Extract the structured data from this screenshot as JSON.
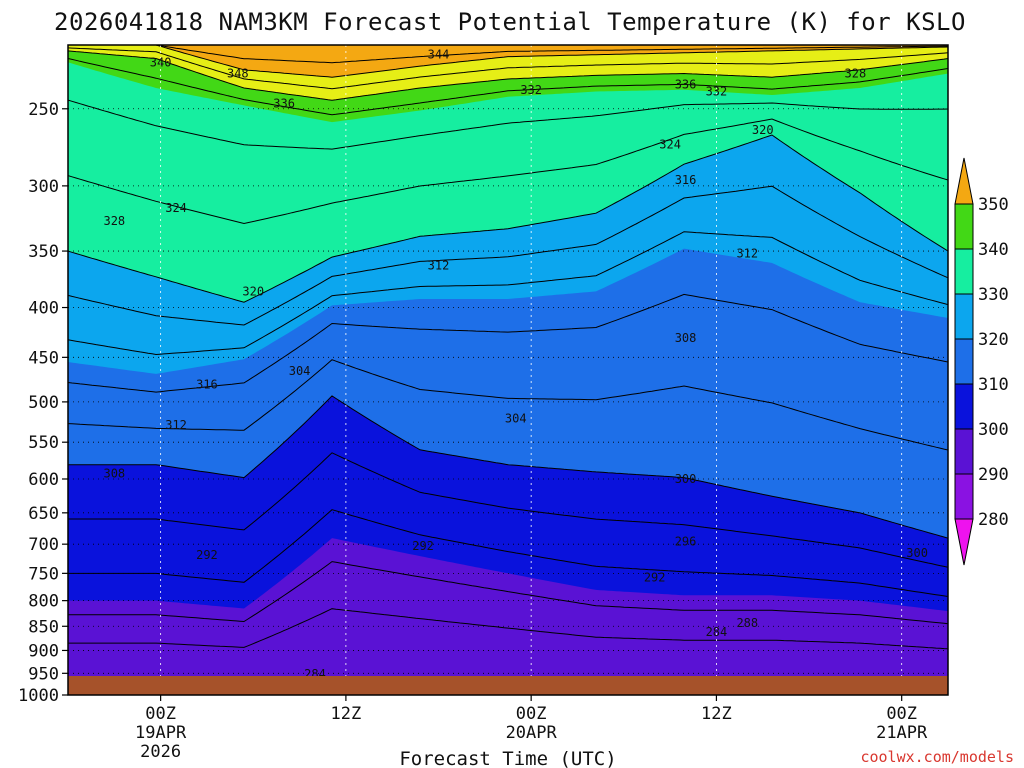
{
  "chart_data": {
    "type": "heatmap",
    "title": "2026041818 NAM3KM Forecast Potential Temperature (K) for KSLO",
    "xlabel": "Forecast Time (UTC)",
    "ylabel": "",
    "y_scale": "log",
    "y_inverted": true,
    "y_ticks": [
      250,
      300,
      350,
      400,
      450,
      500,
      550,
      600,
      650,
      700,
      750,
      800,
      850,
      900,
      950,
      1000
    ],
    "y_range": [
      1000,
      215
    ],
    "x_range": [
      "2026-04-18 18Z",
      "2026-04-21 03Z"
    ],
    "x_ticks": [
      {
        "time": "2026-04-19 00Z",
        "lines": [
          "00Z",
          "19APR",
          "2026"
        ]
      },
      {
        "time": "2026-04-19 12Z",
        "lines": [
          "12Z"
        ]
      },
      {
        "time": "2026-04-20 00Z",
        "lines": [
          "00Z",
          "20APR"
        ]
      },
      {
        "time": "2026-04-20 12Z",
        "lines": [
          "12Z"
        ]
      },
      {
        "time": "2026-04-21 00Z",
        "lines": [
          "00Z",
          "21APR"
        ]
      }
    ],
    "grid": true,
    "colorbar": {
      "levels": [
        280,
        290,
        300,
        310,
        320,
        330,
        340,
        350
      ],
      "colors": [
        "#ee12ee",
        "#8a12e2",
        "#5a12d4",
        "#0a12dc",
        "#1e6fe8",
        "#0ca6ee",
        "#16eea0",
        "#42d816",
        "#e6ee16",
        "#f4a812"
      ],
      "extend": "both"
    },
    "terrain_color": "#a6522a",
    "contour_interval": 4,
    "isotherms_theta_K": [
      {
        "theta": 344,
        "pressure_hPa": [
          215,
          215,
          228,
          232,
          226,
          221,
          220,
          219,
          218,
          217,
          216
        ]
      },
      {
        "theta": 336,
        "pressure_hPa": [
          218,
          222,
          238,
          245,
          238,
          233,
          231,
          230,
          232,
          228,
          222
        ]
      },
      {
        "theta": 330,
        "pressure_hPa": [
          224,
          238,
          248,
          258,
          251,
          243,
          240,
          239,
          242,
          238,
          230
        ]
      },
      {
        "theta": 320,
        "pressure_hPa": [
          350,
          372,
          395,
          355,
          338,
          332,
          320,
          285,
          266,
          305,
          350
        ]
      },
      {
        "theta": 310,
        "pressure_hPa": [
          455,
          468,
          452,
          398,
          392,
          392,
          385,
          348,
          360,
          395,
          410
        ]
      },
      {
        "theta": 300,
        "pressure_hPa": [
          580,
          580,
          598,
          493,
          560,
          580,
          590,
          598,
          625,
          650,
          690
        ]
      },
      {
        "theta": 290,
        "pressure_hPa": [
          800,
          800,
          815,
          690,
          720,
          750,
          780,
          790,
          790,
          800,
          820
        ]
      }
    ],
    "contour_labels": [
      {
        "text": "340",
        "time": "2026-04-19 00Z",
        "pressure_hPa": 224
      },
      {
        "text": "348",
        "time": "2026-04-19 05Z",
        "pressure_hPa": 230
      },
      {
        "text": "344",
        "time": "2026-04-19 18Z",
        "pressure_hPa": 220
      },
      {
        "text": "332",
        "time": "2026-04-20 00Z",
        "pressure_hPa": 239
      },
      {
        "text": "336",
        "time": "2026-04-20 10Z",
        "pressure_hPa": 236
      },
      {
        "text": "332",
        "time": "2026-04-20 12Z",
        "pressure_hPa": 240
      },
      {
        "text": "328",
        "time": "2026-04-20 21Z",
        "pressure_hPa": 230
      },
      {
        "text": "336",
        "time": "2026-04-19 08Z",
        "pressure_hPa": 247
      },
      {
        "text": "324",
        "time": "2026-04-20 09Z",
        "pressure_hPa": 272
      },
      {
        "text": "320",
        "time": "2026-04-20 15Z",
        "pressure_hPa": 263
      },
      {
        "text": "316",
        "time": "2026-04-20 10Z",
        "pressure_hPa": 296
      },
      {
        "text": "328",
        "time": "2026-04-18 21Z",
        "pressure_hPa": 326
      },
      {
        "text": "324",
        "time": "2026-04-19 01Z",
        "pressure_hPa": 316
      },
      {
        "text": "312",
        "time": "2026-04-19 18Z",
        "pressure_hPa": 362
      },
      {
        "text": "312",
        "time": "2026-04-20 14Z",
        "pressure_hPa": 352
      },
      {
        "text": "320",
        "time": "2026-04-19 06Z",
        "pressure_hPa": 385
      },
      {
        "text": "308",
        "time": "2026-04-20 10Z",
        "pressure_hPa": 430
      },
      {
        "text": "316",
        "time": "2026-04-19 03Z",
        "pressure_hPa": 480
      },
      {
        "text": "304",
        "time": "2026-04-19 09Z",
        "pressure_hPa": 465
      },
      {
        "text": "312",
        "time": "2026-04-19 01Z",
        "pressure_hPa": 528
      },
      {
        "text": "304",
        "time": "2026-04-19 23Z",
        "pressure_hPa": 520
      },
      {
        "text": "308",
        "time": "2026-04-18 21Z",
        "pressure_hPa": 592
      },
      {
        "text": "300",
        "time": "2026-04-20 10Z",
        "pressure_hPa": 600
      },
      {
        "text": "292",
        "time": "2026-04-19 03Z",
        "pressure_hPa": 718
      },
      {
        "text": "292",
        "time": "2026-04-19 17Z",
        "pressure_hPa": 703
      },
      {
        "text": "296",
        "time": "2026-04-20 10Z",
        "pressure_hPa": 696
      },
      {
        "text": "292",
        "time": "2026-04-20 08Z",
        "pressure_hPa": 757
      },
      {
        "text": "300",
        "time": "2026-04-21 01Z",
        "pressure_hPa": 715
      },
      {
        "text": "288",
        "time": "2026-04-20 14Z",
        "pressure_hPa": 843
      },
      {
        "text": "284",
        "time": "2026-04-20 12Z",
        "pressure_hPa": 862
      },
      {
        "text": "284",
        "time": "2026-04-19 10Z",
        "pressure_hPa": 952
      }
    ]
  },
  "credit": "coolwx.com/models"
}
